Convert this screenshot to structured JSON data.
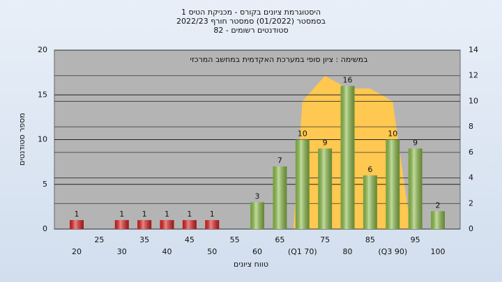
{
  "chart_data": {
    "type": "bar",
    "title": "היסטוגרמת ציונים בקורס - מכניקת הטיס 1",
    "subtitle": [
      "בסמסטר  (01/2022)  סמסטר חורף 2022/23",
      "סטודנטים רשומים - 82"
    ],
    "annotation": "במשימה : ציון סופי במערכת האקדמית במחשב המרכזי",
    "x_label": "טווח ציונים",
    "y_label": "מספר סטודנטים",
    "categories": [
      "20",
      "25",
      "30",
      "35",
      "40",
      "45",
      "50",
      "55",
      "60",
      "65",
      "(Q1 70)",
      "75",
      "80",
      "85",
      "(Q3 90)",
      "95",
      "100"
    ],
    "values": [
      1,
      0,
      1,
      1,
      1,
      1,
      1,
      0,
      3,
      7,
      10,
      9,
      16,
      6,
      10,
      9,
      2
    ],
    "colors": [
      "#e02020",
      "#e02020",
      "#e02020",
      "#e02020",
      "#e02020",
      "#e02020",
      "#e02020",
      "#e02020",
      "#8fc04a",
      "#8fc04a",
      "#8fc04a",
      "#8fc04a",
      "#8fc04a",
      "#8fc04a",
      "#8fc04a",
      "#8fc04a",
      "#8fc04a"
    ],
    "area": {
      "color": "#ffc850",
      "axis": "y2",
      "x": [
        68,
        70,
        75,
        80,
        85,
        90,
        94
      ],
      "values": [
        0,
        10,
        12,
        11,
        11,
        10,
        0
      ]
    },
    "xlim": [
      20,
      100
    ],
    "ylim": [
      0,
      20
    ],
    "yticks": [
      0,
      5,
      10,
      15,
      20
    ],
    "y2lim": [
      0,
      14
    ],
    "y2ticks": [
      0,
      2,
      4,
      6,
      8,
      10,
      12,
      14
    ],
    "grid": true
  }
}
